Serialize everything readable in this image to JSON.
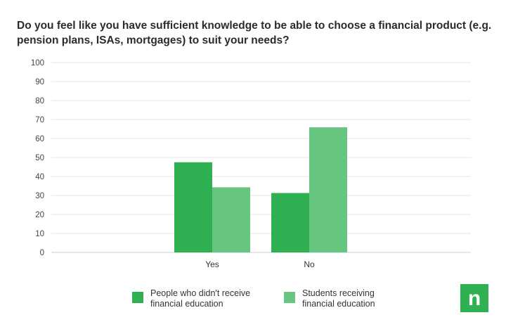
{
  "chart_data": {
    "type": "bar",
    "title": "Do you feel like you have sufficient knowledge to be able to choose a financial product (e.g. pension plans, ISAs, mortgages) to suit your needs?",
    "categories": [
      "Yes",
      "No"
    ],
    "series": [
      {
        "name": "People who didn't receive financial education",
        "values": [
          47.5,
          31.3
        ],
        "color": "#2fb052"
      },
      {
        "name": "Students receiving financial education",
        "values": [
          34.3,
          65.9
        ],
        "color": "#66c67f"
      }
    ],
    "ylim": [
      0,
      100
    ],
    "yticks": [
      0,
      10,
      20,
      30,
      40,
      50,
      60,
      70,
      80,
      90,
      100
    ],
    "grid": true,
    "legend_position": "bottom"
  },
  "legend": {
    "item1_line1": "People who didn't receive",
    "item1_line2": "financial education",
    "item2_line1": "Students receiving",
    "item2_line2": "financial education"
  },
  "logo": {
    "letter": "n",
    "color": "#2fb052"
  }
}
